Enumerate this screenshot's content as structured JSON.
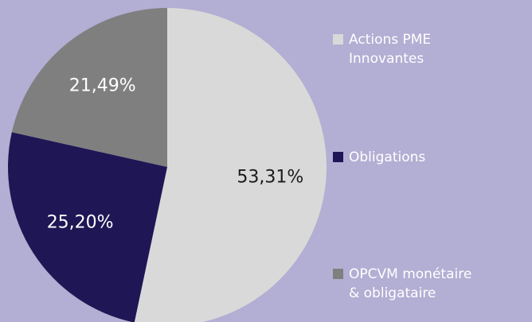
{
  "chart_data": {
    "type": "pie",
    "categories": [
      "Actions PME Innovantes",
      "Obligations",
      "OPCVM monétaire & obligataire"
    ],
    "values": [
      53.31,
      25.2,
      21.49
    ],
    "value_labels": [
      "53,31%",
      "25,20%",
      "21,49%"
    ],
    "colors": [
      "#d9d9d9",
      "#1f1655",
      "#7f7f7f"
    ],
    "label_colors": [
      "#1a1a1a",
      "#ffffff",
      "#ffffff"
    ],
    "legend": "right"
  }
}
